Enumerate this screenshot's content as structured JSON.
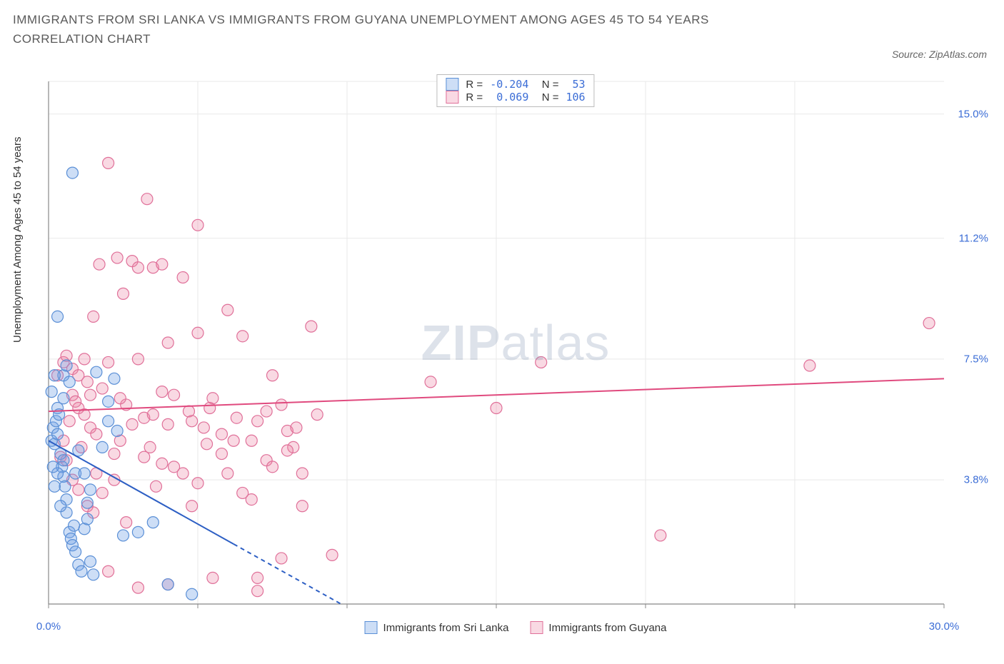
{
  "title": "IMMIGRANTS FROM SRI LANKA VS IMMIGRANTS FROM GUYANA UNEMPLOYMENT AMONG AGES 45 TO 54 YEARS CORRELATION CHART",
  "source": "Source: ZipAtlas.com",
  "ylabel": "Unemployment Among Ages 45 to 54 years",
  "chart": {
    "type": "scatter",
    "xlim": [
      0,
      30
    ],
    "ylim": [
      0,
      16.0
    ],
    "xticks": [
      {
        "v": 0,
        "l": "0.0%"
      },
      {
        "v": 30,
        "l": "30.0%"
      }
    ],
    "yticks": [
      {
        "v": 3.8,
        "l": "3.8%"
      },
      {
        "v": 7.5,
        "l": "7.5%"
      },
      {
        "v": 11.2,
        "l": "11.2%"
      },
      {
        "v": 15.0,
        "l": "15.0%"
      }
    ],
    "grid_color": "#e9e9e9",
    "axis_color": "#888888",
    "background_color": "#ffffff",
    "tick_label_color": "#3b6dd6",
    "marker_radius": 8,
    "marker_stroke_width": 1.2,
    "series": [
      {
        "name": "Immigrants from Sri Lanka",
        "fill": "rgba(112,161,229,0.35)",
        "stroke": "#5a8fd6",
        "line_color": "#2d5fc4",
        "line_width": 2,
        "dash_after_x": 6.2,
        "R": "-0.204",
        "N": "53",
        "trend": {
          "x1": 0,
          "y1": 5.0,
          "x2": 9.8,
          "y2": 0.0
        },
        "points": [
          [
            0.1,
            5.0
          ],
          [
            0.2,
            4.9
          ],
          [
            0.15,
            5.4
          ],
          [
            0.25,
            5.6
          ],
          [
            0.3,
            5.2
          ],
          [
            0.3,
            6.0
          ],
          [
            0.35,
            5.8
          ],
          [
            0.4,
            4.6
          ],
          [
            0.45,
            4.2
          ],
          [
            0.5,
            3.9
          ],
          [
            0.5,
            4.4
          ],
          [
            0.55,
            3.6
          ],
          [
            0.6,
            2.8
          ],
          [
            0.6,
            3.2
          ],
          [
            0.7,
            2.2
          ],
          [
            0.75,
            2.0
          ],
          [
            0.8,
            1.8
          ],
          [
            0.85,
            2.4
          ],
          [
            0.9,
            1.6
          ],
          [
            1.0,
            1.2
          ],
          [
            1.1,
            1.0
          ],
          [
            1.2,
            2.3
          ],
          [
            1.3,
            2.6
          ],
          [
            1.4,
            1.3
          ],
          [
            1.5,
            0.9
          ],
          [
            1.6,
            7.1
          ],
          [
            1.8,
            4.8
          ],
          [
            2.0,
            6.2
          ],
          [
            2.0,
            5.6
          ],
          [
            2.2,
            6.9
          ],
          [
            2.3,
            5.3
          ],
          [
            0.5,
            7.0
          ],
          [
            0.7,
            6.8
          ],
          [
            0.9,
            4.0
          ],
          [
            1.0,
            4.7
          ],
          [
            1.2,
            4.0
          ],
          [
            1.3,
            3.1
          ],
          [
            1.4,
            3.5
          ],
          [
            0.2,
            7.0
          ],
          [
            0.3,
            8.8
          ],
          [
            0.8,
            13.2
          ],
          [
            0.3,
            4.0
          ],
          [
            0.4,
            3.0
          ],
          [
            0.5,
            6.3
          ],
          [
            0.6,
            7.3
          ],
          [
            2.5,
            2.1
          ],
          [
            3.0,
            2.2
          ],
          [
            3.5,
            2.5
          ],
          [
            4.0,
            0.6
          ],
          [
            4.8,
            0.3
          ],
          [
            0.2,
            3.6
          ],
          [
            0.1,
            6.5
          ],
          [
            0.15,
            4.2
          ]
        ]
      },
      {
        "name": "Immigrants from Guyana",
        "fill": "rgba(236,128,163,0.30)",
        "stroke": "#e07099",
        "line_color": "#e04a7e",
        "line_width": 2,
        "R": "0.069",
        "N": "106",
        "trend": {
          "x1": 0,
          "y1": 5.9,
          "x2": 30,
          "y2": 6.9
        },
        "points": [
          [
            0.3,
            7.0
          ],
          [
            0.5,
            7.4
          ],
          [
            0.6,
            7.6
          ],
          [
            0.8,
            7.2
          ],
          [
            0.8,
            6.4
          ],
          [
            1.0,
            7.0
          ],
          [
            1.0,
            6.0
          ],
          [
            1.2,
            5.8
          ],
          [
            1.2,
            7.5
          ],
          [
            1.3,
            6.8
          ],
          [
            1.4,
            5.4
          ],
          [
            1.5,
            8.8
          ],
          [
            1.6,
            5.2
          ],
          [
            1.7,
            10.4
          ],
          [
            1.8,
            6.6
          ],
          [
            2.0,
            13.5
          ],
          [
            2.0,
            7.4
          ],
          [
            2.2,
            4.6
          ],
          [
            2.3,
            10.6
          ],
          [
            2.4,
            5.0
          ],
          [
            2.5,
            9.5
          ],
          [
            2.6,
            6.1
          ],
          [
            2.8,
            10.5
          ],
          [
            3.0,
            10.3
          ],
          [
            3.0,
            7.5
          ],
          [
            3.2,
            5.7
          ],
          [
            3.3,
            12.4
          ],
          [
            3.4,
            4.8
          ],
          [
            3.5,
            10.3
          ],
          [
            3.6,
            3.6
          ],
          [
            3.8,
            10.4
          ],
          [
            3.8,
            6.5
          ],
          [
            4.0,
            8.0
          ],
          [
            4.0,
            5.5
          ],
          [
            4.2,
            4.2
          ],
          [
            4.5,
            10.0
          ],
          [
            4.7,
            5.9
          ],
          [
            4.8,
            3.0
          ],
          [
            5.0,
            11.6
          ],
          [
            5.0,
            8.3
          ],
          [
            5.2,
            5.4
          ],
          [
            5.4,
            6.0
          ],
          [
            5.5,
            0.8
          ],
          [
            5.8,
            4.6
          ],
          [
            6.0,
            9.0
          ],
          [
            6.2,
            5.0
          ],
          [
            6.5,
            8.2
          ],
          [
            6.8,
            3.2
          ],
          [
            7.0,
            5.6
          ],
          [
            7.0,
            0.4
          ],
          [
            7.3,
            4.4
          ],
          [
            7.5,
            7.0
          ],
          [
            7.8,
            1.4
          ],
          [
            8.0,
            5.3
          ],
          [
            8.2,
            4.8
          ],
          [
            8.5,
            3.0
          ],
          [
            8.8,
            8.5
          ],
          [
            9.0,
            5.8
          ],
          [
            9.5,
            1.5
          ],
          [
            12.8,
            6.8
          ],
          [
            15.0,
            6.0
          ],
          [
            16.5,
            7.4
          ],
          [
            20.5,
            2.1
          ],
          [
            25.5,
            7.3
          ],
          [
            29.5,
            8.6
          ],
          [
            0.4,
            4.5
          ],
          [
            0.5,
            5.0
          ],
          [
            0.6,
            4.4
          ],
          [
            0.7,
            5.6
          ],
          [
            0.8,
            3.8
          ],
          [
            0.9,
            6.2
          ],
          [
            1.0,
            3.5
          ],
          [
            1.1,
            4.8
          ],
          [
            1.3,
            3.0
          ],
          [
            1.4,
            6.4
          ],
          [
            1.5,
            2.8
          ],
          [
            1.6,
            4.0
          ],
          [
            1.8,
            3.4
          ],
          [
            2.0,
            1.0
          ],
          [
            2.2,
            3.8
          ],
          [
            2.4,
            6.3
          ],
          [
            2.6,
            2.5
          ],
          [
            2.8,
            5.5
          ],
          [
            3.0,
            0.5
          ],
          [
            3.2,
            4.5
          ],
          [
            3.5,
            5.8
          ],
          [
            3.8,
            4.3
          ],
          [
            4.0,
            0.6
          ],
          [
            4.2,
            6.4
          ],
          [
            4.5,
            4.0
          ],
          [
            4.8,
            5.6
          ],
          [
            5.0,
            3.7
          ],
          [
            5.3,
            4.9
          ],
          [
            5.5,
            6.3
          ],
          [
            5.8,
            5.2
          ],
          [
            6.0,
            4.0
          ],
          [
            6.3,
            5.7
          ],
          [
            6.5,
            3.4
          ],
          [
            6.8,
            5.0
          ],
          [
            7.0,
            0.8
          ],
          [
            7.3,
            5.9
          ],
          [
            7.5,
            4.2
          ],
          [
            7.8,
            6.1
          ],
          [
            8.0,
            4.7
          ],
          [
            8.3,
            5.4
          ],
          [
            8.5,
            4.0
          ]
        ]
      }
    ]
  },
  "watermark": {
    "part1": "ZIP",
    "part2": "atlas"
  },
  "legend_bottom": [
    {
      "label": "Immigrants from Sri Lanka",
      "fill": "rgba(112,161,229,0.35)",
      "stroke": "#5a8fd6"
    },
    {
      "label": "Immigrants from Guyana",
      "fill": "rgba(236,128,163,0.30)",
      "stroke": "#e07099"
    }
  ]
}
